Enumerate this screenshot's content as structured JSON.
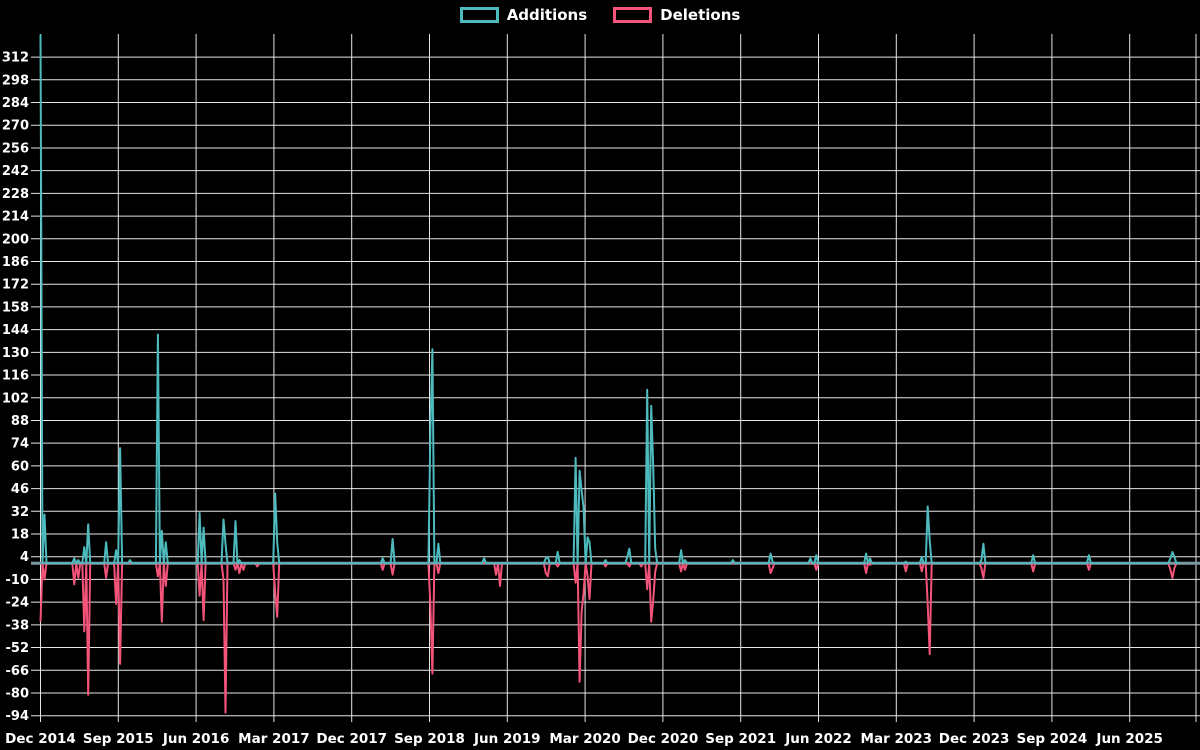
{
  "legend": {
    "items": [
      {
        "label": "Additions",
        "color": "#4dbbbe"
      },
      {
        "label": "Deletions",
        "color": "#f4547a"
      }
    ]
  },
  "colors": {
    "background": "#000000",
    "gridline": "#e6e6e6",
    "zero_line": "#7d96a0",
    "tick_text": "#ffffff",
    "additions": "#4dbbbe",
    "deletions": "#f4547a"
  },
  "chart_data": {
    "type": "line",
    "title": "",
    "description": "Weekly additions and deletions spike chart (code frequency), Dec 2014 - late 2025",
    "legend_position": "top",
    "grid": true,
    "baseline": 0,
    "y_axis": {
      "step": 14,
      "ticks": [
        312,
        298,
        284,
        270,
        256,
        242,
        228,
        214,
        200,
        186,
        172,
        158,
        144,
        130,
        116,
        102,
        88,
        74,
        60,
        46,
        32,
        18,
        4,
        -10,
        -24,
        -38,
        -52,
        -66,
        -80,
        -94
      ],
      "display_max_clip": 326,
      "display_min": -97
    },
    "x_axis": {
      "tick_labels": [
        "Dec 2014",
        "Sep 2015",
        "Jun 2016",
        "Mar 2017",
        "Dec 2017",
        "Sep 2018",
        "Jun 2019",
        "Mar 2020",
        "Dec 2020",
        "Sep 2021",
        "Jun 2022",
        "Mar 2023",
        "Dec 2023",
        "Sep 2024",
        "Jun 2025"
      ],
      "tick_interval_months": 9,
      "t_unit": "months since Dec 2014",
      "t_end_months": 132.2
    },
    "series_names": [
      "Additions",
      "Deletions"
    ],
    "zero_between_events": true,
    "events": [
      {
        "t": 0.0,
        "add": 326,
        "del": -36
      },
      {
        "t": 0.5,
        "add": 30,
        "del": -10
      },
      {
        "t": 4.0,
        "add": 3,
        "del": -13
      },
      {
        "t": 4.4,
        "add": 2,
        "del": -9
      },
      {
        "t": 5.0,
        "add": 10,
        "del": -42
      },
      {
        "t": 5.6,
        "add": 24,
        "del": -81
      },
      {
        "t": 7.6,
        "add": 13,
        "del": -9
      },
      {
        "t": 8.8,
        "add": 8,
        "del": -25
      },
      {
        "t": 9.1,
        "add": 71,
        "del": -62
      },
      {
        "t": 10.4,
        "add": 2,
        "del": 0
      },
      {
        "t": 13.6,
        "add": 141,
        "del": -8
      },
      {
        "t": 14.0,
        "add": 20,
        "del": -36
      },
      {
        "t": 14.5,
        "add": 13,
        "del": -14
      },
      {
        "t": 18.4,
        "add": 31,
        "del": -20
      },
      {
        "t": 18.8,
        "add": 22,
        "del": -35
      },
      {
        "t": 21.1,
        "add": 27,
        "del": -10
      },
      {
        "t": 21.4,
        "add": 12,
        "del": -92
      },
      {
        "t": 22.6,
        "add": 26,
        "del": -4
      },
      {
        "t": 23.1,
        "add": 2,
        "del": -6
      },
      {
        "t": 23.5,
        "add": 0,
        "del": -4
      },
      {
        "t": 25.0,
        "add": 0,
        "del": -2
      },
      {
        "t": 27.2,
        "add": 43,
        "del": -18
      },
      {
        "t": 27.5,
        "add": 13,
        "del": -33
      },
      {
        "t": 39.5,
        "add": 3,
        "del": -4
      },
      {
        "t": 40.8,
        "add": 15,
        "del": -7
      },
      {
        "t": 45.0,
        "add": 82,
        "del": -26
      },
      {
        "t": 45.3,
        "add": 132,
        "del": -68
      },
      {
        "t": 46.0,
        "add": 12,
        "del": -6
      },
      {
        "t": 51.3,
        "add": 3,
        "del": 0
      },
      {
        "t": 52.7,
        "add": 0,
        "del": -7
      },
      {
        "t": 53.1,
        "add": 0,
        "del": -14
      },
      {
        "t": 58.4,
        "add": 3,
        "del": -6
      },
      {
        "t": 58.7,
        "add": 4,
        "del": -8
      },
      {
        "t": 59.9,
        "add": 7,
        "del": -2
      },
      {
        "t": 62.0,
        "add": 65,
        "del": -12
      },
      {
        "t": 62.3,
        "add": 57,
        "del": -73
      },
      {
        "t": 62.6,
        "add": 45,
        "del": -30
      },
      {
        "t": 62.9,
        "add": 34,
        "del": -18
      },
      {
        "t": 63.2,
        "add": 16,
        "del": -8
      },
      {
        "t": 63.5,
        "add": 13,
        "del": -22
      },
      {
        "t": 65.4,
        "add": 2,
        "del": -2
      },
      {
        "t": 67.9,
        "add": 4,
        "del": 0
      },
      {
        "t": 68.2,
        "add": 9,
        "del": -2
      },
      {
        "t": 69.4,
        "add": 0,
        "del": -2
      },
      {
        "t": 70.3,
        "add": 107,
        "del": -16
      },
      {
        "t": 70.6,
        "add": 97,
        "del": -36
      },
      {
        "t": 70.9,
        "add": 60,
        "del": -23
      },
      {
        "t": 71.2,
        "add": 9,
        "del": -5
      },
      {
        "t": 74.1,
        "add": 8,
        "del": -5
      },
      {
        "t": 74.5,
        "add": 2,
        "del": -4
      },
      {
        "t": 80.2,
        "add": 2,
        "del": 0
      },
      {
        "t": 84.4,
        "add": 6,
        "del": -6
      },
      {
        "t": 84.8,
        "add": 1,
        "del": -3
      },
      {
        "t": 89.1,
        "add": 3,
        "del": 0
      },
      {
        "t": 89.8,
        "add": 5,
        "del": -4
      },
      {
        "t": 95.5,
        "add": 6,
        "del": -6
      },
      {
        "t": 95.9,
        "add": 3,
        "del": -1
      },
      {
        "t": 100.0,
        "add": 1,
        "del": -5
      },
      {
        "t": 101.9,
        "add": 4,
        "del": -5
      },
      {
        "t": 102.6,
        "add": 35,
        "del": -25
      },
      {
        "t": 102.9,
        "add": 14,
        "del": -56
      },
      {
        "t": 108.8,
        "add": 2,
        "del": -3
      },
      {
        "t": 109.1,
        "add": 12,
        "del": -9
      },
      {
        "t": 114.9,
        "add": 5,
        "del": -5
      },
      {
        "t": 121.4,
        "add": 5,
        "del": -4
      },
      {
        "t": 130.7,
        "add": 3,
        "del": -4
      },
      {
        "t": 131.0,
        "add": 7,
        "del": -9
      },
      {
        "t": 131.3,
        "add": 4,
        "del": -3
      }
    ]
  }
}
